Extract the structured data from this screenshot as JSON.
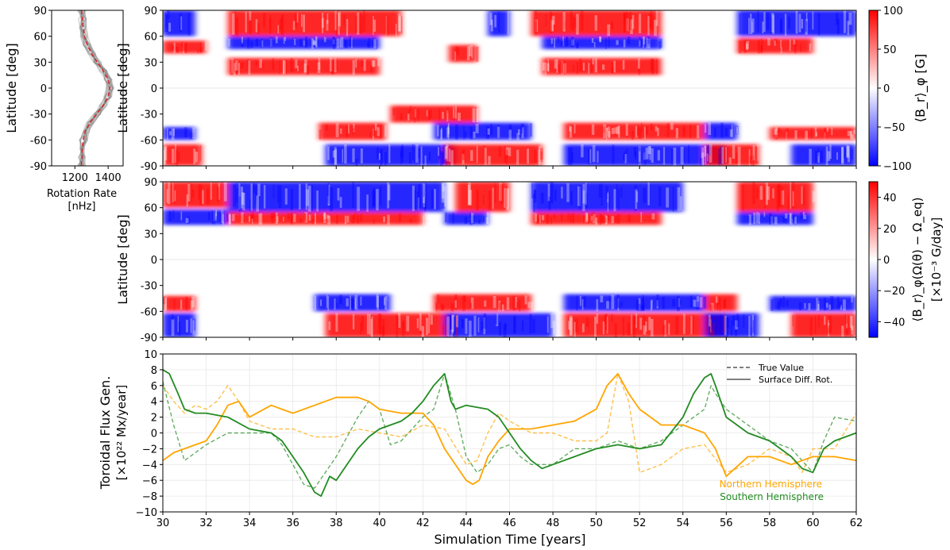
{
  "chart_data": [
    {
      "type": "line",
      "panel": "rotation-profile",
      "xlabel": [
        "Rotation Rate",
        "[nHz]"
      ],
      "ylabel": "Latitude [deg]",
      "xlim": [
        1060,
        1490
      ],
      "ylim": [
        -90,
        90
      ],
      "xticks": [
        1200,
        1400
      ],
      "yticks": [
        -90,
        -60,
        -30,
        0,
        30,
        60,
        90
      ],
      "series": [
        {
          "style": "dashed",
          "color": "#d62728",
          "points": [
            [
              1240,
              90
            ],
            [
              1245,
              80
            ],
            [
              1250,
              70
            ],
            [
              1258,
              60
            ],
            [
              1275,
              50
            ],
            [
              1300,
              40
            ],
            [
              1335,
              30
            ],
            [
              1370,
              20
            ],
            [
              1400,
              10
            ],
            [
              1410,
              0
            ],
            [
              1400,
              -10
            ],
            [
              1370,
              -20
            ],
            [
              1330,
              -30
            ],
            [
              1290,
              -40
            ],
            [
              1262,
              -50
            ],
            [
              1250,
              -60
            ],
            [
              1245,
              -70
            ],
            [
              1242,
              -80
            ],
            [
              1240,
              -90
            ]
          ]
        }
      ],
      "ensemble_color": "#808080"
    },
    {
      "type": "heatmap",
      "panel": "Br-map",
      "ylabel": "Latitude [deg]",
      "xlim": [
        30,
        62
      ],
      "ylim": [
        -90,
        90
      ],
      "yticks": [
        -90,
        -60,
        -30,
        0,
        30,
        60,
        90
      ],
      "colorbar": {
        "label": "⟨B_r⟩_φ [G]",
        "range": [
          -100,
          100
        ],
        "ticks": [
          -100,
          -50,
          0,
          50,
          100
        ],
        "colormap": "bwr"
      },
      "features": [
        {
          "t": [
            30,
            31.8
          ],
          "lat": [
            -90,
            -65
          ],
          "sign": 1
        },
        {
          "t": [
            30,
            31.5
          ],
          "lat": [
            -60,
            -45
          ],
          "sign": -1
        },
        {
          "t": [
            30,
            31.5
          ],
          "lat": [
            60,
            90
          ],
          "sign": -1
        },
        {
          "t": [
            30,
            32
          ],
          "lat": [
            40,
            55
          ],
          "sign": 1
        },
        {
          "t": [
            33,
            41
          ],
          "lat": [
            60,
            90
          ],
          "sign": 1
        },
        {
          "t": [
            33,
            40
          ],
          "lat": [
            45,
            60
          ],
          "sign": -1
        },
        {
          "t": [
            33,
            40
          ],
          "lat": [
            15,
            35
          ],
          "sign": 1
        },
        {
          "t": [
            37.2,
            40.3
          ],
          "lat": [
            -60,
            -40
          ],
          "sign": 1
        },
        {
          "t": [
            37.5,
            43.5
          ],
          "lat": [
            -90,
            -65
          ],
          "sign": -1
        },
        {
          "t": [
            40.5,
            44.5
          ],
          "lat": [
            -40,
            -20
          ],
          "sign": 1
        },
        {
          "t": [
            43.2,
            44.5
          ],
          "lat": [
            30,
            50
          ],
          "sign": 1
        },
        {
          "t": [
            45,
            46
          ],
          "lat": [
            60,
            90
          ],
          "sign": -1
        },
        {
          "t": [
            43,
            47.5
          ],
          "lat": [
            -90,
            -65
          ],
          "sign": 1
        },
        {
          "t": [
            42.5,
            47
          ],
          "lat": [
            -60,
            -40
          ],
          "sign": -1
        },
        {
          "t": [
            47,
            53
          ],
          "lat": [
            60,
            90
          ],
          "sign": 1
        },
        {
          "t": [
            47.5,
            53
          ],
          "lat": [
            45,
            60
          ],
          "sign": -1
        },
        {
          "t": [
            47.5,
            53
          ],
          "lat": [
            15,
            35
          ],
          "sign": 1
        },
        {
          "t": [
            48.5,
            56
          ],
          "lat": [
            -90,
            -65
          ],
          "sign": -1
        },
        {
          "t": [
            48.5,
            55
          ],
          "lat": [
            -60,
            -40
          ],
          "sign": 1
        },
        {
          "t": [
            55,
            56.5
          ],
          "lat": [
            -60,
            -40
          ],
          "sign": -1
        },
        {
          "t": [
            55,
            57.5
          ],
          "lat": [
            -90,
            -65
          ],
          "sign": 1
        },
        {
          "t": [
            56.5,
            62
          ],
          "lat": [
            60,
            90
          ],
          "sign": -1
        },
        {
          "t": [
            56.5,
            60
          ],
          "lat": [
            40,
            58
          ],
          "sign": 1
        },
        {
          "t": [
            59,
            62
          ],
          "lat": [
            -90,
            -65
          ],
          "sign": -1
        },
        {
          "t": [
            58,
            62
          ],
          "lat": [
            -60,
            -45
          ],
          "sign": 1
        }
      ]
    },
    {
      "type": "heatmap",
      "panel": "flux-generation-map",
      "ylabel": "Latitude [deg]",
      "xlim": [
        30,
        62
      ],
      "ylim": [
        -90,
        90
      ],
      "yticks": [
        -90,
        -60,
        -30,
        0,
        30,
        60,
        90
      ],
      "colorbar": {
        "label": "⟨B_r⟩_φ(Ω(θ) − Ω_eq)",
        "label2": "[×10⁻³ G/day]",
        "range": [
          -50,
          50
        ],
        "ticks": [
          -40,
          -20,
          0,
          20,
          40
        ],
        "colormap": "bwr"
      },
      "features": [
        {
          "t": [
            30,
            33
          ],
          "lat": [
            60,
            90
          ],
          "sign": 1
        },
        {
          "t": [
            30,
            33
          ],
          "lat": [
            40,
            58
          ],
          "sign": -1
        },
        {
          "t": [
            30,
            31.5
          ],
          "lat": [
            -90,
            -62
          ],
          "sign": -1
        },
        {
          "t": [
            30,
            31.5
          ],
          "lat": [
            -60,
            -42
          ],
          "sign": 1
        },
        {
          "t": [
            33,
            43
          ],
          "lat": [
            55,
            90
          ],
          "sign": -1
        },
        {
          "t": [
            33,
            42
          ],
          "lat": [
            40,
            55
          ],
          "sign": 1
        },
        {
          "t": [
            37.5,
            43.5
          ],
          "lat": [
            -90,
            -62
          ],
          "sign": 1
        },
        {
          "t": [
            37,
            40.5
          ],
          "lat": [
            -60,
            -40
          ],
          "sign": -1
        },
        {
          "t": [
            43.5,
            46
          ],
          "lat": [
            55,
            90
          ],
          "sign": 1
        },
        {
          "t": [
            43,
            45
          ],
          "lat": [
            40,
            55
          ],
          "sign": -1
        },
        {
          "t": [
            43,
            48
          ],
          "lat": [
            -90,
            -62
          ],
          "sign": -1
        },
        {
          "t": [
            42.5,
            47
          ],
          "lat": [
            -60,
            -40
          ],
          "sign": 1
        },
        {
          "t": [
            47,
            54
          ],
          "lat": [
            55,
            90
          ],
          "sign": -1
        },
        {
          "t": [
            47,
            53
          ],
          "lat": [
            40,
            55
          ],
          "sign": 1
        },
        {
          "t": [
            48.5,
            56
          ],
          "lat": [
            -90,
            -62
          ],
          "sign": 1
        },
        {
          "t": [
            48.5,
            55
          ],
          "lat": [
            -60,
            -40
          ],
          "sign": -1
        },
        {
          "t": [
            55,
            57.5
          ],
          "lat": [
            -90,
            -62
          ],
          "sign": -1
        },
        {
          "t": [
            55,
            56.5
          ],
          "lat": [
            -60,
            -40
          ],
          "sign": 1
        },
        {
          "t": [
            56.5,
            60
          ],
          "lat": [
            55,
            90
          ],
          "sign": 1
        },
        {
          "t": [
            56.5,
            60
          ],
          "lat": [
            40,
            55
          ],
          "sign": -1
        },
        {
          "t": [
            59,
            62
          ],
          "lat": [
            -90,
            -62
          ],
          "sign": 1
        },
        {
          "t": [
            58,
            62
          ],
          "lat": [
            -60,
            -42
          ],
          "sign": -1
        }
      ]
    },
    {
      "type": "line",
      "panel": "toroidal-flux",
      "xlabel": "Simulation Time [years]",
      "ylabel": [
        "Toroidal Flux Gen.",
        "[×10²² Mx/year]"
      ],
      "xlim": [
        30,
        62
      ],
      "ylim": [
        -10,
        10
      ],
      "xticks": [
        30,
        32,
        34,
        36,
        38,
        40,
        42,
        44,
        46,
        48,
        50,
        52,
        54,
        56,
        58,
        60,
        62
      ],
      "yticks": [
        -10,
        -8,
        -6,
        -4,
        -2,
        0,
        2,
        4,
        6,
        8,
        10
      ],
      "grid": true,
      "legend_styles": [
        {
          "label": "True Value",
          "style": "dashed"
        },
        {
          "label": "Surface Diff. Rot.",
          "style": "solid"
        }
      ],
      "hemisphere_labels": [
        {
          "label": "Northern Hemisphere",
          "color": "#ffa500"
        },
        {
          "label": "Southern Hemisphere",
          "color": "#228b22"
        }
      ],
      "series": [
        {
          "color": "#ffa500",
          "style": "solid",
          "x": [
            30,
            30.5,
            31,
            31.5,
            32,
            32.5,
            33,
            33.5,
            34,
            35,
            36,
            37,
            38,
            39,
            39.5,
            40,
            41,
            42,
            42.5,
            43,
            43.5,
            44,
            44.3,
            44.6,
            45,
            45.5,
            46,
            47,
            48,
            49,
            50,
            50.5,
            51,
            51.5,
            52,
            53,
            54,
            55,
            55.5,
            56,
            57,
            58,
            59,
            60,
            61,
            62
          ],
          "y": [
            -3.5,
            -2.5,
            -2,
            -1.5,
            -1,
            1,
            3.5,
            4,
            2,
            3.5,
            2.5,
            3.5,
            4.5,
            4.5,
            4,
            3,
            2.5,
            2.5,
            1,
            -2,
            -4,
            -6,
            -6.5,
            -6,
            -3,
            -1,
            0.5,
            0.5,
            1,
            1.5,
            3,
            6,
            7.5,
            5,
            3,
            1,
            1,
            0,
            -2,
            -5.5,
            -3,
            -3,
            -4,
            -3,
            -3,
            -3.5
          ]
        },
        {
          "color": "#ffa500",
          "style": "dashed",
          "x": [
            30,
            30.5,
            31,
            31.5,
            32,
            32.5,
            33,
            33.5,
            34,
            35,
            36,
            37,
            38,
            39,
            40,
            41,
            42,
            43,
            44,
            44.5,
            45,
            45.5,
            46,
            47,
            48,
            49,
            50,
            50.5,
            51,
            51.5,
            52,
            53,
            54,
            55,
            56,
            57,
            58,
            59,
            59.5,
            60,
            61,
            62
          ],
          "y": [
            6,
            4,
            2.5,
            3.5,
            3,
            4,
            6,
            4,
            1.5,
            0.5,
            0.5,
            -0.5,
            -0.5,
            0.5,
            0,
            -0.5,
            1,
            0.5,
            -4,
            -3.5,
            0,
            2.5,
            1.5,
            0,
            0,
            -1,
            -1,
            0,
            7.5,
            4,
            -5,
            -4,
            -2,
            -1.5,
            -5,
            -4,
            -2,
            -3,
            -5,
            -2,
            -2,
            2.5
          ]
        },
        {
          "color": "#228b22",
          "style": "solid",
          "x": [
            30,
            30.3,
            30.7,
            31,
            31.5,
            32,
            33,
            34,
            35,
            35.5,
            36,
            36.5,
            37,
            37.3,
            37.7,
            38,
            38.5,
            39,
            39.5,
            40,
            41,
            41.5,
            42,
            42.5,
            43,
            43.3,
            43.5,
            44,
            45,
            45.5,
            46,
            46.5,
            47,
            47.5,
            48,
            49,
            50,
            51,
            52,
            53,
            54,
            54.5,
            55,
            55.3,
            55.5,
            56,
            57,
            58,
            58.5,
            59,
            59.5,
            60,
            60.5,
            61,
            62
          ],
          "y": [
            8,
            7.5,
            5,
            3,
            2.5,
            2.5,
            2,
            0.5,
            0,
            -1,
            -3,
            -5,
            -7.5,
            -8,
            -5.5,
            -6,
            -4,
            -2,
            -0.5,
            0.5,
            1.5,
            2.5,
            4,
            6,
            7.5,
            4,
            3,
            3.5,
            3,
            2,
            0,
            -2,
            -3.5,
            -4.5,
            -4,
            -3,
            -2,
            -1.5,
            -2,
            -1.5,
            2,
            5,
            7,
            7.5,
            6,
            2,
            0,
            -1,
            -2,
            -3,
            -4.5,
            -5,
            -2,
            -1,
            0
          ]
        },
        {
          "color": "#228b22",
          "style": "dashed",
          "x": [
            30,
            30.5,
            31,
            31.5,
            32,
            33,
            34,
            35,
            35.5,
            36,
            36.5,
            37,
            37.5,
            38,
            39,
            39.5,
            40,
            40.5,
            41,
            42,
            42.5,
            43,
            43.5,
            44,
            44.5,
            45,
            45.5,
            46,
            46.5,
            47,
            48,
            49,
            50,
            51,
            52,
            53,
            54,
            55,
            55.3,
            55.5,
            56,
            57,
            58,
            59,
            60,
            60.5,
            61,
            62
          ],
          "y": [
            6.5,
            1,
            -3.5,
            -2.5,
            -1.5,
            0,
            0,
            0,
            -1.5,
            -4,
            -6.5,
            -7,
            -5,
            -3,
            2,
            4,
            3,
            -1.5,
            -1,
            2,
            3,
            7.5,
            3,
            -3,
            -5,
            -4,
            -2,
            -1.5,
            -3,
            -4,
            -4,
            -2,
            -2,
            -1,
            -2,
            -1,
            1,
            3,
            6,
            5,
            3,
            1,
            -1,
            -2,
            -5,
            -1,
            2,
            1.5
          ]
        }
      ]
    }
  ]
}
